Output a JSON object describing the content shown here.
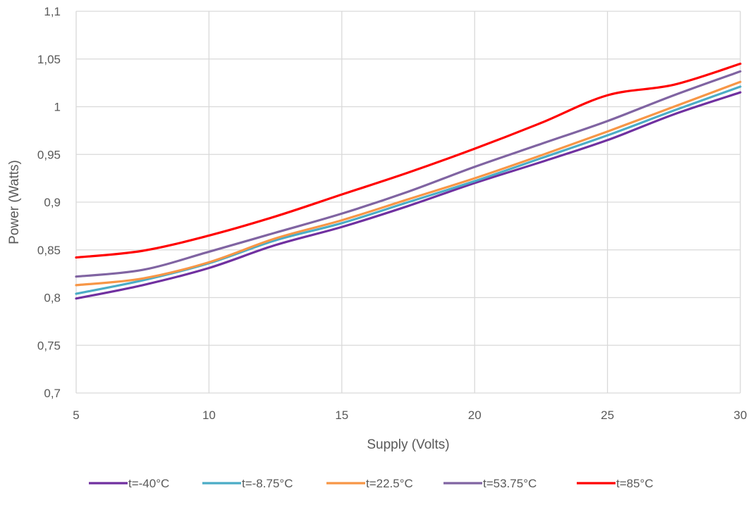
{
  "chart_data": {
    "type": "line",
    "title": "",
    "xlabel": "Supply (Volts)",
    "ylabel": "Power (Watts)",
    "xlim": [
      5,
      30
    ],
    "ylim": [
      0.7,
      1.1
    ],
    "x_ticks": [
      "5",
      "10",
      "15",
      "20",
      "25",
      "30"
    ],
    "y_ticks": [
      "0,7",
      "0,75",
      "0,8",
      "0,85",
      "0,9",
      "0,95",
      "1",
      "1,05",
      "1,1"
    ],
    "grid": true,
    "legend_position": "bottom",
    "x": [
      5,
      7.5,
      10,
      12.5,
      15,
      17.5,
      20,
      22.5,
      25,
      27.5,
      30
    ],
    "series": [
      {
        "name": "t=-40°C",
        "color": "#7030A0",
        "values": [
          0.799,
          0.813,
          0.831,
          0.855,
          0.874,
          0.896,
          0.92,
          0.942,
          0.965,
          0.992,
          1.015
        ]
      },
      {
        "name": "t=-8.75°C",
        "color": "#4BACC6",
        "values": [
          0.804,
          0.818,
          0.836,
          0.86,
          0.878,
          0.9,
          0.922,
          0.946,
          0.97,
          0.996,
          1.021
        ]
      },
      {
        "name": "t=22.5°C",
        "color": "#F79646",
        "values": [
          0.813,
          0.82,
          0.837,
          0.862,
          0.881,
          0.903,
          0.925,
          0.949,
          0.974,
          1.0,
          1.026
        ]
      },
      {
        "name": "t=53.75°C",
        "color": "#8064A2",
        "values": [
          0.822,
          0.829,
          0.848,
          0.868,
          0.888,
          0.911,
          0.937,
          0.961,
          0.985,
          1.012,
          1.037
        ]
      },
      {
        "name": "t=85°C",
        "color": "#FF0000",
        "values": [
          0.842,
          0.849,
          0.865,
          0.885,
          0.908,
          0.931,
          0.956,
          0.983,
          1.012,
          1.023,
          1.045
        ]
      }
    ]
  }
}
